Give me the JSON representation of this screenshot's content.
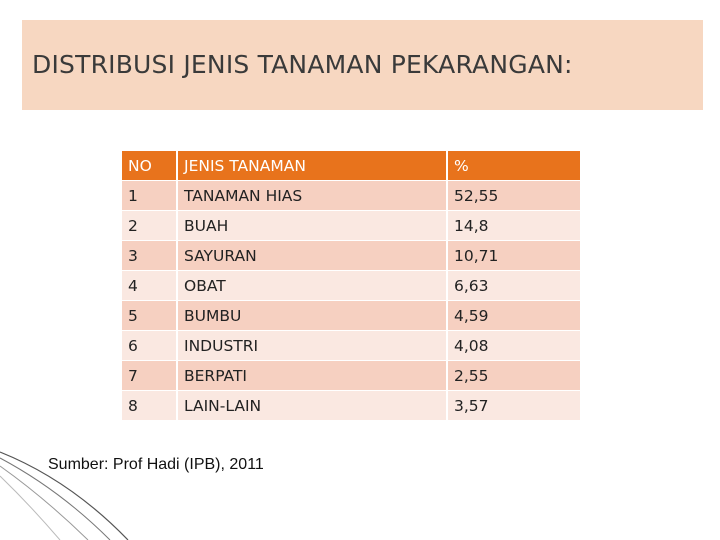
{
  "header": {
    "title": "DISTRIBUSI JENIS TANAMAN PEKARANGAN:"
  },
  "table": {
    "columns": [
      "NO",
      "JENIS TANAMAN",
      "%"
    ],
    "rows": [
      [
        "1",
        "TANAMAN HIAS",
        "52,55"
      ],
      [
        "2",
        "BUAH",
        "14,8"
      ],
      [
        "3",
        "SAYURAN",
        "10,71"
      ],
      [
        "4",
        "OBAT",
        "6,63"
      ],
      [
        "5",
        "BUMBU",
        "4,59"
      ],
      [
        "6",
        "INDUSTRI",
        "4,08"
      ],
      [
        "7",
        "BERPATI",
        "2,55"
      ],
      [
        "8",
        "LAIN-LAIN",
        "3,57"
      ]
    ]
  },
  "source": "Sumber: Prof Hadi (IPB), 2011"
}
